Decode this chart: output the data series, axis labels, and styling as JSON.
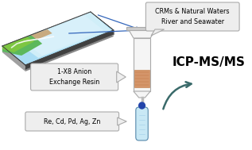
{
  "bg_color": "#ffffff",
  "landscape": {
    "green1": "#5cb85c",
    "green2": "#7dc642",
    "water_light": "#d0eef8",
    "water_mid": "#aaddf5",
    "water_top": "#bce8f8",
    "sand": "#c8aa80",
    "dark_edge": "#404040",
    "side_gray": "#a0a0a0",
    "side_gray2": "#b8b8b8",
    "bottom_gray": "#888888"
  },
  "syringe": {
    "body": "#f5f5f5",
    "body_edge": "#aaaaaa",
    "top_funnel": "#e8e8e8",
    "cap_top": "#cccccc",
    "resin": "#d4956a",
    "resin_edge": "#c07840",
    "tip": "#e0e0e0",
    "needle": "#bbbbbb"
  },
  "vial": {
    "body": "#c8e8f5",
    "edge": "#5588aa",
    "cap": "#2244aa",
    "lines": "#88bbdd"
  },
  "callouts": {
    "bg": "#eeeeee",
    "edge": "#aaaaaa"
  },
  "arrows": {
    "blue": "#3366bb",
    "icp": "#3a6a6a"
  },
  "texts": {
    "crm": "CRMs & Natural Waters\nRiver and Seawater",
    "resin": "1-X8 Anion\nExchange Resin",
    "elements": "Re, Cd, Pd, Ag, Zn",
    "icp": "ICP-MS/MS"
  }
}
